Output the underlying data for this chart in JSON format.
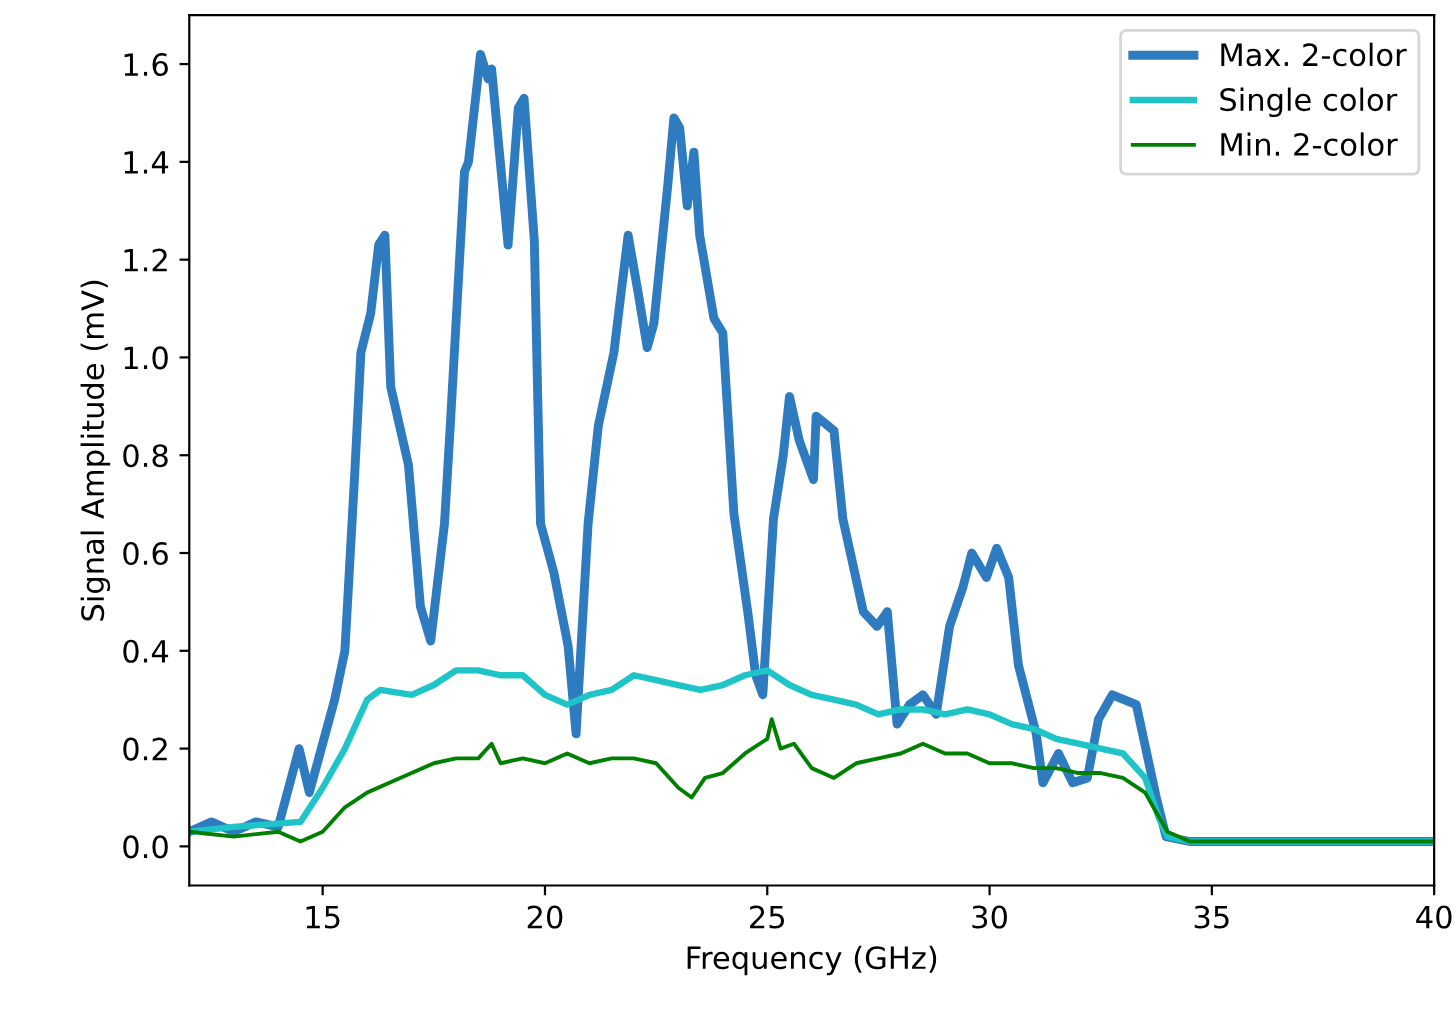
{
  "chart_data": {
    "type": "line",
    "xlabel": "Frequency (GHz)",
    "ylabel": "Signal Amplitude (mV)",
    "xlim": [
      12,
      40
    ],
    "xticks": [
      15,
      20,
      25,
      30,
      35,
      40
    ],
    "ylim": [
      -0.08,
      1.7
    ],
    "yticks": [
      {
        "value": 0,
        "label": "0.0"
      },
      {
        "value": 0.2,
        "label": "0.2"
      },
      {
        "value": 0.4,
        "label": "0.4"
      },
      {
        "value": 0.6,
        "label": "0.6"
      },
      {
        "value": 0.8,
        "label": "0.8"
      },
      {
        "value": 1.0,
        "label": "1.0"
      },
      {
        "value": 1.2,
        "label": "1.2"
      },
      {
        "value": 1.4,
        "label": "1.4"
      },
      {
        "value": 1.6,
        "label": "1.6"
      }
    ],
    "grid": false,
    "legend": "top right",
    "marker": "none",
    "line_style": "solid",
    "series": [
      {
        "name": "Max. 2-color",
        "color": "#2f7bbf",
        "x": [
          12,
          12.5,
          13,
          13.5,
          14,
          14.47,
          14.7,
          15.27,
          15.5,
          15.72,
          15.86,
          16.08,
          16.26,
          16.4,
          16.53,
          16.93,
          17.2,
          17.43,
          17.74,
          17.87,
          18.19,
          18.28,
          18.55,
          18.72,
          18.8,
          19.17,
          19.4,
          19.53,
          19.76,
          19.9,
          20.2,
          20.52,
          20.7,
          20.97,
          21.2,
          21.55,
          21.87,
          22.1,
          22.3,
          22.45,
          22.76,
          22.9,
          23.03,
          23.2,
          23.35,
          23.48,
          23.8,
          24.0,
          24.25,
          24.56,
          24.74,
          24.9,
          25.14,
          25.36,
          25.5,
          25.72,
          26.04,
          26.1,
          26.5,
          26.7,
          27.16,
          27.47,
          27.7,
          27.92,
          28.2,
          28.5,
          28.8,
          29.1,
          29.4,
          29.6,
          29.93,
          30.16,
          30.43,
          30.65,
          31.05,
          31.2,
          31.55,
          31.87,
          32.2,
          32.45,
          32.76,
          33.3,
          33.75,
          33.97,
          34.5,
          40
        ],
        "values": [
          0.03,
          0.05,
          0.03,
          0.05,
          0.04,
          0.2,
          0.11,
          0.3,
          0.4,
          0.76,
          1.01,
          1.09,
          1.23,
          1.25,
          0.94,
          0.78,
          0.49,
          0.42,
          0.66,
          0.86,
          1.38,
          1.4,
          1.62,
          1.57,
          1.59,
          1.23,
          1.51,
          1.53,
          1.24,
          0.66,
          0.56,
          0.41,
          0.23,
          0.66,
          0.86,
          1.01,
          1.25,
          1.13,
          1.02,
          1.07,
          1.35,
          1.49,
          1.47,
          1.31,
          1.42,
          1.25,
          1.08,
          1.05,
          0.68,
          0.48,
          0.35,
          0.31,
          0.67,
          0.8,
          0.92,
          0.83,
          0.75,
          0.88,
          0.85,
          0.67,
          0.48,
          0.45,
          0.48,
          0.25,
          0.29,
          0.31,
          0.27,
          0.45,
          0.53,
          0.6,
          0.55,
          0.61,
          0.55,
          0.37,
          0.23,
          0.13,
          0.19,
          0.13,
          0.14,
          0.26,
          0.31,
          0.29,
          0.1,
          0.02,
          0.01,
          0.01
        ]
      },
      {
        "name": "Single color",
        "color": "#1ec4c8",
        "x": [
          12,
          13,
          14.5,
          15,
          15.5,
          16,
          16.3,
          17,
          17.5,
          18,
          18.5,
          19,
          19.5,
          20,
          20.5,
          21,
          21.5,
          22,
          22.5,
          23,
          23.5,
          24,
          24.5,
          25,
          25.5,
          26,
          26.5,
          27,
          27.5,
          28,
          28.5,
          29,
          29.5,
          30,
          30.5,
          31,
          31.5,
          32,
          32.5,
          33,
          33.5,
          33.8,
          34,
          34.5,
          40
        ],
        "values": [
          0.03,
          0.04,
          0.05,
          0.12,
          0.2,
          0.3,
          0.32,
          0.31,
          0.33,
          0.36,
          0.36,
          0.35,
          0.35,
          0.31,
          0.29,
          0.31,
          0.32,
          0.35,
          0.34,
          0.33,
          0.32,
          0.33,
          0.35,
          0.36,
          0.33,
          0.31,
          0.3,
          0.29,
          0.27,
          0.28,
          0.28,
          0.27,
          0.28,
          0.27,
          0.25,
          0.24,
          0.22,
          0.21,
          0.2,
          0.19,
          0.14,
          0.06,
          0.02,
          0.01,
          0.01
        ]
      },
      {
        "name": "Min. 2-color",
        "color": "#008000",
        "x": [
          12,
          13,
          14,
          14.5,
          15,
          15.5,
          16,
          16.5,
          17,
          17.5,
          18,
          18.5,
          18.8,
          19,
          19.5,
          20,
          20.5,
          21,
          21.5,
          22,
          22.5,
          23,
          23.3,
          23.6,
          24,
          24.5,
          25,
          25.1,
          25.3,
          25.6,
          26,
          26.5,
          27,
          27.5,
          28,
          28.5,
          29,
          29.5,
          30,
          30.5,
          31,
          31.5,
          32,
          32.5,
          33,
          33.5,
          34,
          34.5,
          40
        ],
        "values": [
          0.03,
          0.02,
          0.03,
          0.01,
          0.03,
          0.08,
          0.11,
          0.13,
          0.15,
          0.17,
          0.18,
          0.18,
          0.21,
          0.17,
          0.18,
          0.17,
          0.19,
          0.17,
          0.18,
          0.18,
          0.17,
          0.12,
          0.1,
          0.14,
          0.15,
          0.19,
          0.22,
          0.26,
          0.2,
          0.21,
          0.16,
          0.14,
          0.17,
          0.18,
          0.19,
          0.21,
          0.19,
          0.19,
          0.17,
          0.17,
          0.16,
          0.16,
          0.15,
          0.15,
          0.14,
          0.11,
          0.03,
          0.01,
          0.01
        ]
      }
    ]
  }
}
